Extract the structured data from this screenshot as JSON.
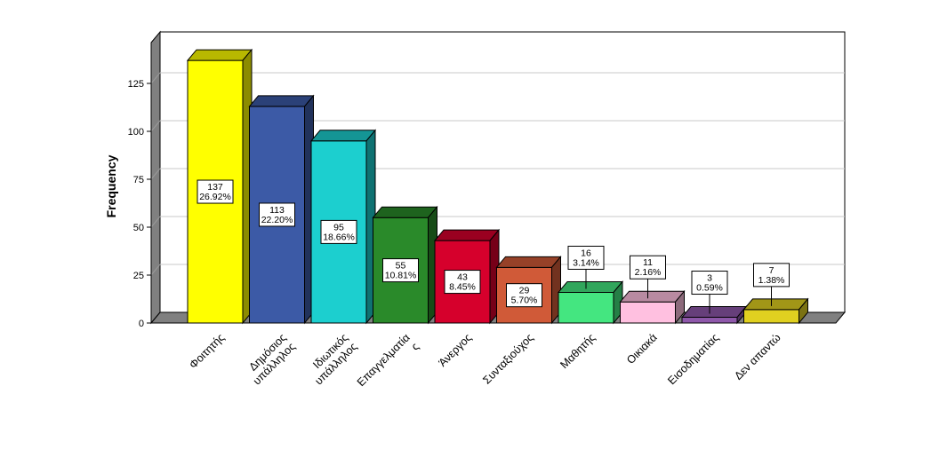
{
  "chart_data": {
    "type": "bar",
    "ylabel": "Frequency",
    "xlabel": "",
    "ylim": [
      0,
      150
    ],
    "yticks": [
      0,
      25,
      50,
      75,
      100,
      125
    ],
    "grid": true,
    "categories": [
      [
        "Φοιτητής"
      ],
      [
        "Δημόσιος",
        "υπάλληλος"
      ],
      [
        "Ιδιωτικός",
        "υπάλληλος"
      ],
      [
        "Επαγγελματία",
        "ς"
      ],
      [
        "Άνεργος"
      ],
      [
        "Συνταξιούχος"
      ],
      [
        "Μαθητής"
      ],
      [
        "Οικιακά"
      ],
      [
        "Εισοδηματίας"
      ],
      [
        "Δεν απαντώ"
      ]
    ],
    "values": [
      137,
      113,
      95,
      55,
      43,
      29,
      16,
      11,
      3,
      7
    ],
    "percent_labels": [
      "26.92%",
      "22.20%",
      "18.66%",
      "10.81%",
      "8.45%",
      "5.70%",
      "3.14%",
      "2.16%",
      "0.59%",
      "1.38%"
    ],
    "colors": [
      "#ffff00",
      "#3c5aa6",
      "#1ccfcf",
      "#2a8a2a",
      "#d6002c",
      "#d05a38",
      "#44e680",
      "#ffc0e0",
      "#8e58aa",
      "#e0d020"
    ]
  }
}
